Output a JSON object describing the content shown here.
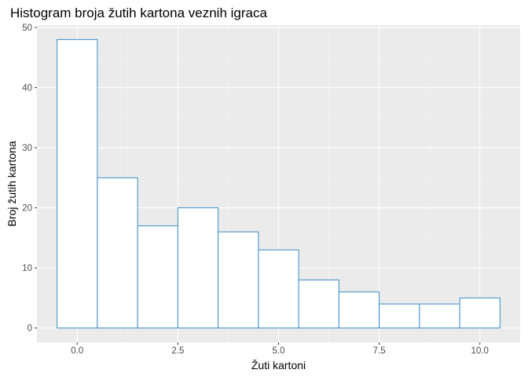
{
  "chart_data": {
    "type": "bar",
    "title": "Histogram broja žutih kartona veznih igraca",
    "xlabel": "Žuti kartoni",
    "ylabel": "Broj žutih kartona",
    "bins": [
      {
        "x": 0,
        "count": 48
      },
      {
        "x": 1,
        "count": 25
      },
      {
        "x": 2,
        "count": 17
      },
      {
        "x": 3,
        "count": 20
      },
      {
        "x": 4,
        "count": 16
      },
      {
        "x": 5,
        "count": 13
      },
      {
        "x": 6,
        "count": 8
      },
      {
        "x": 7,
        "count": 6
      },
      {
        "x": 8,
        "count": 4
      },
      {
        "x": 9,
        "count": 4
      },
      {
        "x": 10,
        "count": 5
      }
    ],
    "bin_width": 1,
    "xlim": [
      -1.0,
      11.0
    ],
    "ylim": [
      -2.4,
      50.4
    ],
    "x_ticks": [
      0,
      2.5,
      5,
      7.5,
      10
    ],
    "x_tick_labels": [
      "0.0",
      "2.5",
      "5.0",
      "7.5",
      "10.0"
    ],
    "y_ticks": [
      0,
      10,
      20,
      30,
      40,
      50
    ],
    "y_tick_labels": [
      "0",
      "10",
      "20",
      "30",
      "40",
      "50"
    ],
    "grid": true,
    "colors": {
      "panel_background": "#ebebeb",
      "grid_major": "#ffffff",
      "grid_minor": "#f5f5f5",
      "bar_fill": "#ffffff",
      "bar_outline": "#3a8fc7",
      "tick_text": "#4d4d4d"
    }
  }
}
